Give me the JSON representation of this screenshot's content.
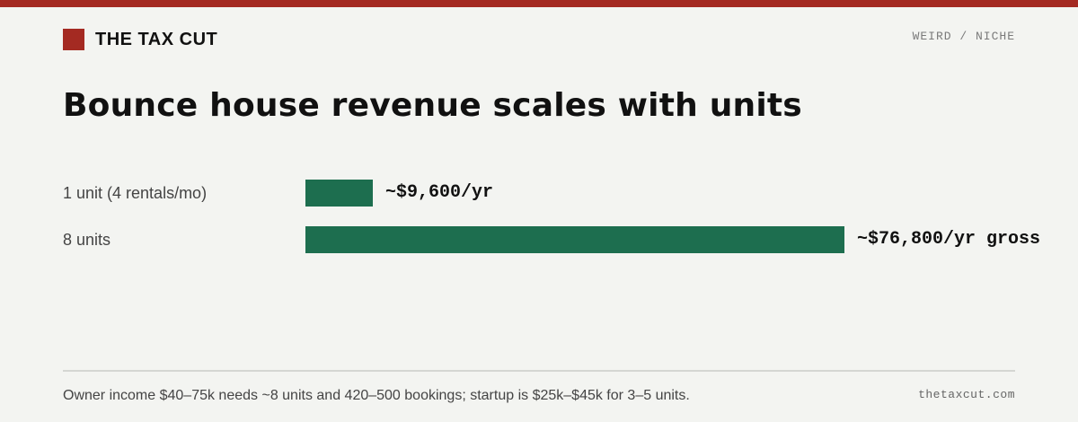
{
  "brand": {
    "name": "THE TAX CUT"
  },
  "category": "WEIRD / NICHE",
  "colors": {
    "accent": "#a42a22",
    "bar": "#1d6e4f",
    "background": "#f3f4f1"
  },
  "chart_data": {
    "type": "bar",
    "orientation": "horizontal",
    "title": "Bounce house revenue scales with units",
    "categories": [
      "1 unit (4 rentals/mo)",
      "8 units"
    ],
    "values": [
      9600,
      76800
    ],
    "value_labels": [
      "~$9,600/yr",
      "~$76,800/yr gross"
    ],
    "xlim": [
      0,
      76800
    ],
    "grid": false
  },
  "footer": {
    "note": "Owner income $40–75k needs ~8 units and 420–500 bookings; startup is $25k–$45k for 3–5 units.",
    "site": "thetaxcut.com"
  }
}
